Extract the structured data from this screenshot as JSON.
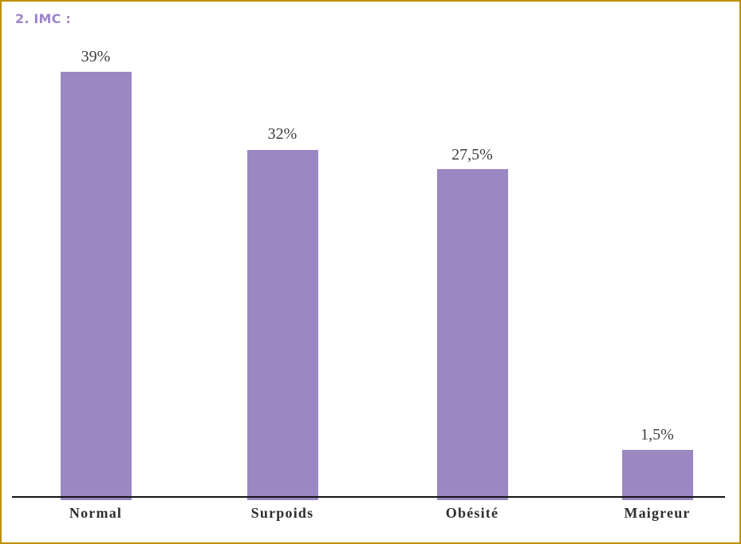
{
  "title": {
    "text": "2. IMC :"
  },
  "colors": {
    "page_border": "#bf9000",
    "title_text": "#9d85c8",
    "bar_fill": "#9b87c1",
    "axis_line": "#151515",
    "value_label_text": "#3d3d3d",
    "category_label_text": "#2e2e2e",
    "background": "#ffffff"
  },
  "chart_data": {
    "type": "bar",
    "title": "2. IMC :",
    "categories": [
      "Normal",
      "Surpoids",
      "Obésité",
      "Maigreur"
    ],
    "values": [
      39,
      32,
      27.5,
      1.5
    ],
    "value_labels": [
      "39%",
      "32%",
      "27,5%",
      "1,5%"
    ],
    "unit": "%",
    "xlabel": "",
    "ylabel": "",
    "grid": false,
    "legend": false,
    "bar_color": "#9b87c1",
    "axis": "single horizontal baseline, no y-axis, no tick marks"
  }
}
